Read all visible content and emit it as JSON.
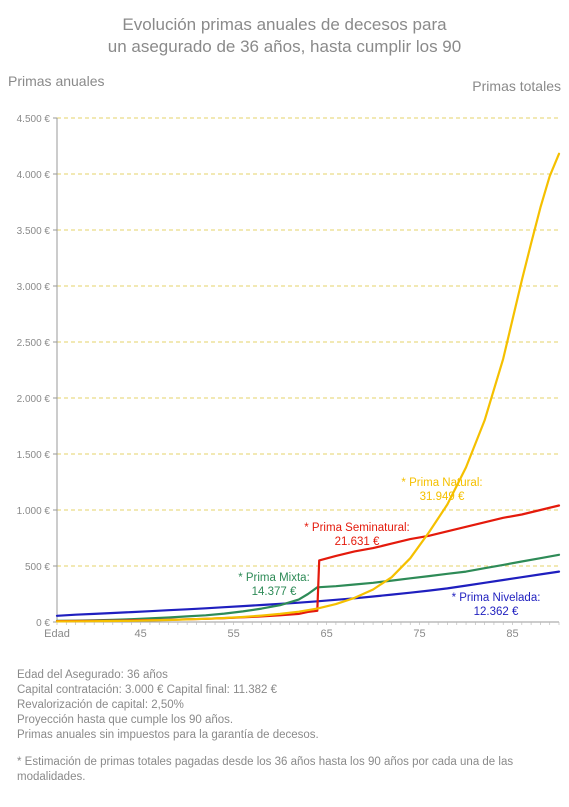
{
  "chart_data": {
    "type": "line",
    "title_lines": [
      "Evolución primas anuales de decesos para",
      "un asegurado de 36 años, hasta cumplir los 90"
    ],
    "ylabel": "Primas anuales",
    "y2label": "Primas totales",
    "xlabel": "Edad",
    "xlim": [
      36,
      90
    ],
    "ylim": [
      0,
      4500
    ],
    "x_ticks": [
      45,
      55,
      65,
      75,
      85
    ],
    "y_ticks": [
      0,
      500,
      1000,
      1500,
      2000,
      2500,
      3000,
      3500,
      4000,
      4500
    ],
    "y_tick_labels": [
      "0 €",
      "500 €",
      "1.000 €",
      "1.500 €",
      "2.000 €",
      "2.500 €",
      "3.000 €",
      "3.500 €",
      "4.000 €",
      "4.500 €"
    ],
    "grid": "horizontal-dashed",
    "series": [
      {
        "name": "Prima Natural",
        "total": "31.949 €",
        "color": "#f5c000",
        "x": [
          36,
          38,
          40,
          42,
          44,
          46,
          48,
          50,
          52,
          54,
          56,
          58,
          60,
          62,
          64,
          66,
          68,
          70,
          72,
          74,
          76,
          78,
          80,
          82,
          84,
          86,
          87,
          88,
          89,
          90
        ],
        "values": [
          5,
          6,
          7,
          9,
          11,
          14,
          18,
          23,
          29,
          36,
          45,
          57,
          72,
          92,
          120,
          160,
          215,
          290,
          400,
          570,
          800,
          1050,
          1380,
          1800,
          2350,
          3050,
          3380,
          3700,
          3980,
          4180
        ]
      },
      {
        "name": "Prima Seminatural",
        "total": "21.631 €",
        "color": "#e41a0c",
        "x": [
          36,
          38,
          40,
          42,
          44,
          46,
          48,
          50,
          52,
          54,
          56,
          58,
          60,
          62,
          63,
          64,
          64.2,
          66,
          68,
          70,
          72,
          74,
          76,
          78,
          80,
          82,
          84,
          86,
          88,
          90
        ],
        "values": [
          8,
          9,
          10,
          12,
          14,
          17,
          20,
          24,
          29,
          35,
          42,
          50,
          60,
          72,
          90,
          100,
          550,
          590,
          630,
          660,
          700,
          740,
          770,
          810,
          850,
          890,
          930,
          960,
          1000,
          1040
        ]
      },
      {
        "name": "Prima Mixta",
        "total": "14.377 €",
        "color": "#2e8b57",
        "x": [
          36,
          38,
          40,
          42,
          44,
          46,
          48,
          50,
          52,
          54,
          56,
          58,
          60,
          62,
          63,
          64,
          66,
          68,
          70,
          72,
          74,
          76,
          78,
          80,
          82,
          84,
          86,
          88,
          90
        ],
        "values": [
          10,
          12,
          15,
          20,
          25,
          32,
          40,
          50,
          60,
          75,
          95,
          120,
          150,
          200,
          250,
          310,
          320,
          335,
          350,
          370,
          390,
          410,
          430,
          450,
          480,
          510,
          540,
          570,
          600
        ]
      },
      {
        "name": "Prima Nivelada",
        "total": "12.362 €",
        "color": "#1f1fbf",
        "x": [
          36,
          38,
          40,
          42,
          44,
          46,
          48,
          50,
          52,
          54,
          56,
          58,
          60,
          62,
          64,
          66,
          68,
          70,
          72,
          74,
          76,
          78,
          80,
          82,
          84,
          86,
          88,
          90
        ],
        "values": [
          55,
          65,
          72,
          80,
          88,
          96,
          105,
          113,
          122,
          132,
          142,
          152,
          162,
          172,
          185,
          198,
          212,
          228,
          245,
          262,
          280,
          300,
          325,
          350,
          375,
          400,
          425,
          450
        ]
      }
    ],
    "annotations": [
      {
        "series": 0,
        "label": "* Prima Natural:",
        "value": "31.949 €"
      },
      {
        "series": 1,
        "label": "* Prima Seminatural:",
        "value": "21.631 €"
      },
      {
        "series": 2,
        "label": "* Prima Mixta:",
        "value": "14.377 €"
      },
      {
        "series": 3,
        "label": "* Prima Nivelada:",
        "value": "12.362 €"
      }
    ]
  },
  "notes": [
    "Edad del Asegurado: 36 años",
    "Capital contratación: 3.000 € Capital final: 11.382 €",
    "Revalorización de capital: 2,50%",
    "Proyección hasta que cumple los 90 años.",
    "Primas anuales sin impuestos para la garantía de decesos."
  ],
  "footnote": "* Estimación de primas totales pagadas desde los 36 años hasta los 90 años por cada una de las modalidades."
}
